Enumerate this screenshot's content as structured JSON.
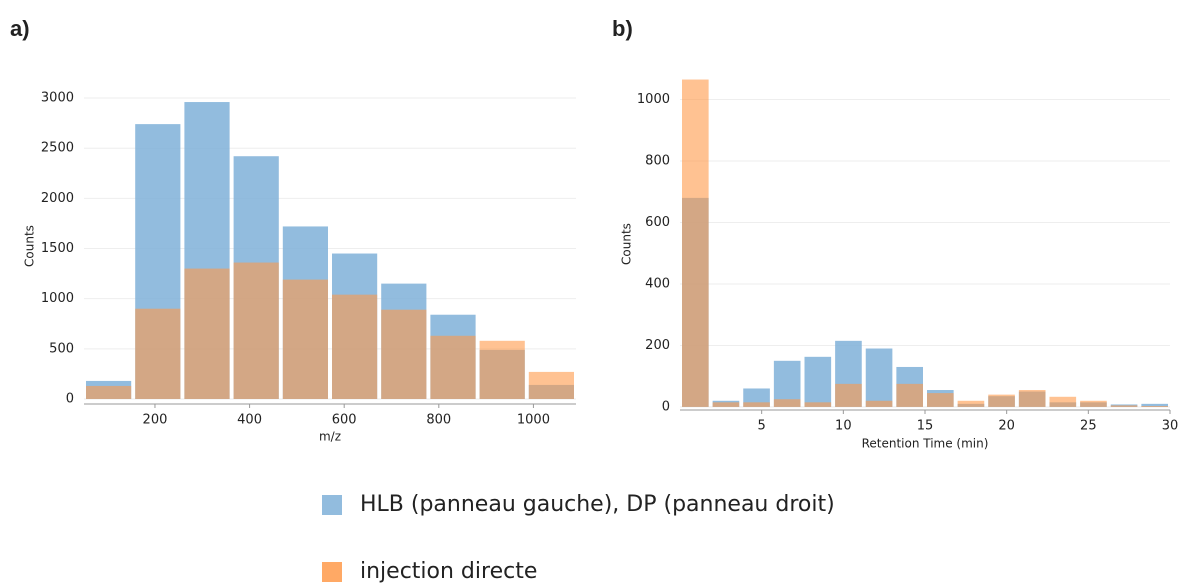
{
  "chart_data": [
    {
      "type": "histogram",
      "label": "a)",
      "x_label": "m/z",
      "y_label": "Counts",
      "bins": [
        50,
        154,
        258,
        362,
        466,
        570,
        674,
        778,
        882,
        986,
        1090
      ],
      "series": [
        {
          "color": "#7fb0d8",
          "values": [
            180,
            2740,
            2960,
            2420,
            1720,
            1450,
            1150,
            840,
            490,
            140
          ]
        },
        {
          "color": "#ff9a4a",
          "values": [
            130,
            900,
            1300,
            1360,
            1190,
            1040,
            890,
            630,
            580,
            270
          ]
        }
      ],
      "xlim": [
        50,
        1090
      ],
      "xticks": [
        200,
        400,
        600,
        800,
        1000
      ],
      "ylim": [
        -50,
        3100
      ],
      "yticks": [
        0,
        500,
        1000,
        1500,
        2000,
        2500,
        3000
      ],
      "grid": true
    },
    {
      "type": "histogram",
      "label": "b)",
      "x_label": "Retention Time (min)",
      "y_label": "Counts",
      "bins": [
        0,
        1.875,
        3.75,
        5.625,
        7.5,
        9.375,
        11.25,
        13.125,
        15,
        16.875,
        18.75,
        20.625,
        22.5,
        24.375,
        26.25,
        28.125,
        30
      ],
      "series": [
        {
          "color": "#7fb0d8",
          "values": [
            680,
            20,
            60,
            150,
            163,
            215,
            190,
            130,
            55,
            10,
            35,
            50,
            15,
            15,
            8,
            10
          ]
        },
        {
          "color": "#ff9a4a",
          "values": [
            1065,
            15,
            15,
            25,
            15,
            75,
            20,
            75,
            45,
            20,
            40,
            55,
            33,
            20,
            5,
            3
          ]
        }
      ],
      "xlim": [
        0,
        30
      ],
      "xticks": [
        5,
        10,
        15,
        20,
        25,
        30
      ],
      "ylim": [
        -10,
        1070
      ],
      "yticks": [
        0,
        200,
        400,
        600,
        800,
        1000
      ],
      "grid": true
    }
  ],
  "legend": [
    {
      "label": "HLB (panneau gauche), DP (panneau droit)",
      "color": "#7fb0d8"
    },
    {
      "label": "injection directe",
      "color": "#ff9a4a"
    }
  ]
}
